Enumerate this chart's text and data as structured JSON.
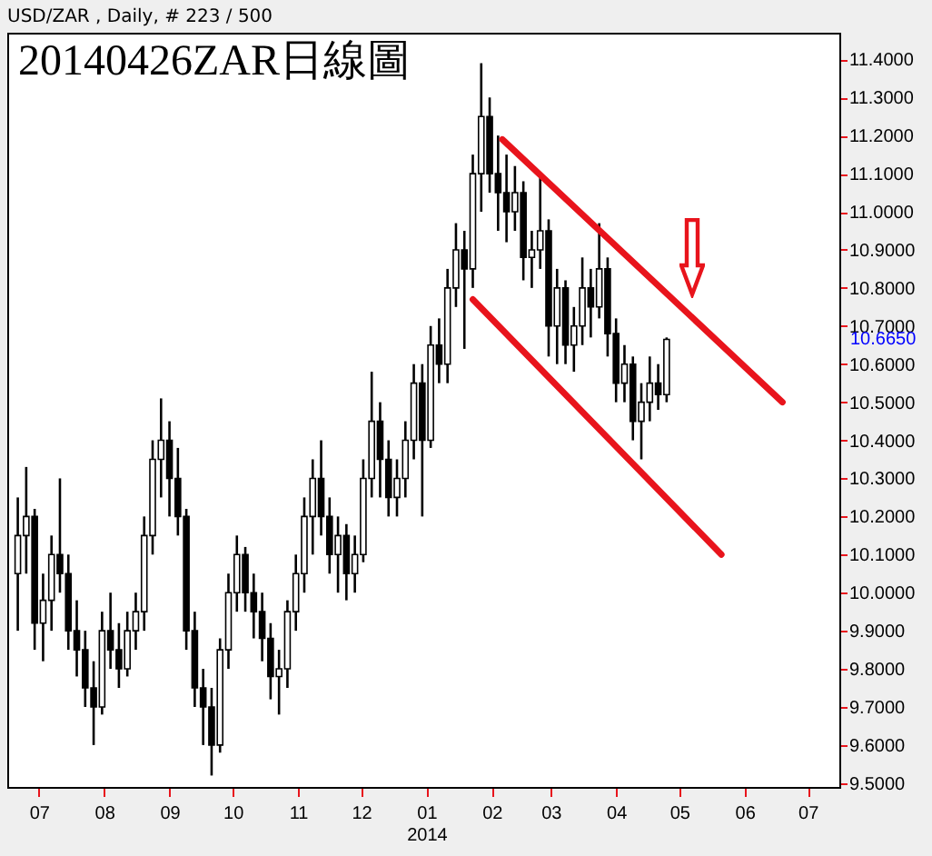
{
  "chart_data": {
    "type": "candlestick",
    "title": "20140426ZAR日線圖",
    "subtitle": "USD/ZAR , Daily, # 223 / 500",
    "x": [
      "2013-06-21",
      "2013-06-25",
      "2013-06-29",
      "2013-07-03",
      "2013-07-07",
      "2013-07-11",
      "2013-07-15",
      "2013-07-19",
      "2013-07-23",
      "2013-07-27",
      "2013-07-31",
      "2013-08-04",
      "2013-08-08",
      "2013-08-12",
      "2013-08-16",
      "2013-08-20",
      "2013-08-24",
      "2013-08-28",
      "2013-09-01",
      "2013-09-05",
      "2013-09-09",
      "2013-09-13",
      "2013-09-17",
      "2013-09-21",
      "2013-09-25",
      "2013-09-29",
      "2013-10-03",
      "2013-10-07",
      "2013-10-11",
      "2013-10-15",
      "2013-10-19",
      "2013-10-23",
      "2013-10-27",
      "2013-10-31",
      "2013-11-04",
      "2013-11-08",
      "2013-11-12",
      "2013-11-16",
      "2013-11-20",
      "2013-11-24",
      "2013-11-28",
      "2013-12-02",
      "2013-12-06",
      "2013-12-10",
      "2013-12-14",
      "2013-12-18",
      "2013-12-22",
      "2013-12-26",
      "2013-12-30",
      "2014-01-03",
      "2014-01-07",
      "2014-01-11",
      "2014-01-15",
      "2014-01-19",
      "2014-01-23",
      "2014-01-27",
      "2014-01-31",
      "2014-02-04",
      "2014-02-08",
      "2014-02-12",
      "2014-02-16",
      "2014-02-20",
      "2014-02-24",
      "2014-02-28",
      "2014-03-04",
      "2014-03-08",
      "2014-03-12",
      "2014-03-16",
      "2014-03-20",
      "2014-03-24",
      "2014-03-28",
      "2014-04-01",
      "2014-04-05",
      "2014-04-09",
      "2014-04-13",
      "2014-04-17",
      "2014-04-21",
      "2014-04-25"
    ],
    "ohlc": [
      [
        10.05,
        10.25,
        9.9,
        10.15
      ],
      [
        10.15,
        10.33,
        10.05,
        10.2
      ],
      [
        10.2,
        10.22,
        9.85,
        9.92
      ],
      [
        9.92,
        10.05,
        9.82,
        9.98
      ],
      [
        9.98,
        10.15,
        9.9,
        10.1
      ],
      [
        10.1,
        10.3,
        10.0,
        10.05
      ],
      [
        10.05,
        10.1,
        9.85,
        9.9
      ],
      [
        9.9,
        9.98,
        9.78,
        9.85
      ],
      [
        9.85,
        9.9,
        9.7,
        9.75
      ],
      [
        9.75,
        9.82,
        9.6,
        9.7
      ],
      [
        9.7,
        9.95,
        9.68,
        9.9
      ],
      [
        9.9,
        10.0,
        9.8,
        9.85
      ],
      [
        9.85,
        9.92,
        9.75,
        9.8
      ],
      [
        9.8,
        9.95,
        9.78,
        9.9
      ],
      [
        9.9,
        10.0,
        9.85,
        9.95
      ],
      [
        9.95,
        10.2,
        9.9,
        10.15
      ],
      [
        10.15,
        10.4,
        10.1,
        10.35
      ],
      [
        10.35,
        10.51,
        10.25,
        10.4
      ],
      [
        10.4,
        10.45,
        10.2,
        10.3
      ],
      [
        10.3,
        10.38,
        10.15,
        10.2
      ],
      [
        10.2,
        10.22,
        9.85,
        9.9
      ],
      [
        9.9,
        9.95,
        9.7,
        9.75
      ],
      [
        9.75,
        9.8,
        9.6,
        9.7
      ],
      [
        9.7,
        9.75,
        9.52,
        9.6
      ],
      [
        9.6,
        9.88,
        9.58,
        9.85
      ],
      [
        9.85,
        10.05,
        9.8,
        10.0
      ],
      [
        10.0,
        10.15,
        9.95,
        10.1
      ],
      [
        10.1,
        10.12,
        9.95,
        10.0
      ],
      [
        10.0,
        10.05,
        9.88,
        9.95
      ],
      [
        9.95,
        10.0,
        9.82,
        9.88
      ],
      [
        9.88,
        9.92,
        9.72,
        9.78
      ],
      [
        9.78,
        9.85,
        9.68,
        9.8
      ],
      [
        9.8,
        9.98,
        9.75,
        9.95
      ],
      [
        9.95,
        10.1,
        9.9,
        10.05
      ],
      [
        10.05,
        10.25,
        10.0,
        10.2
      ],
      [
        10.2,
        10.35,
        10.1,
        10.3
      ],
      [
        10.3,
        10.4,
        10.15,
        10.2
      ],
      [
        10.2,
        10.25,
        10.05,
        10.1
      ],
      [
        10.1,
        10.2,
        10.0,
        10.15
      ],
      [
        10.15,
        10.18,
        9.98,
        10.05
      ],
      [
        10.05,
        10.15,
        10.0,
        10.1
      ],
      [
        10.1,
        10.35,
        10.08,
        10.3
      ],
      [
        10.3,
        10.58,
        10.25,
        10.45
      ],
      [
        10.45,
        10.5,
        10.25,
        10.35
      ],
      [
        10.35,
        10.4,
        10.2,
        10.25
      ],
      [
        10.25,
        10.35,
        10.2,
        10.3
      ],
      [
        10.3,
        10.45,
        10.25,
        10.4
      ],
      [
        10.4,
        10.6,
        10.35,
        10.55
      ],
      [
        10.55,
        10.6,
        10.2,
        10.4
      ],
      [
        10.4,
        10.7,
        10.38,
        10.65
      ],
      [
        10.65,
        10.72,
        10.55,
        10.6
      ],
      [
        10.6,
        10.85,
        10.55,
        10.8
      ],
      [
        10.8,
        10.97,
        10.75,
        10.9
      ],
      [
        10.9,
        10.95,
        10.64,
        10.85
      ],
      [
        10.85,
        11.15,
        10.8,
        11.1
      ],
      [
        11.1,
        11.39,
        11.0,
        11.25
      ],
      [
        11.25,
        11.3,
        11.05,
        11.1
      ],
      [
        11.1,
        11.2,
        10.95,
        11.05
      ],
      [
        11.05,
        11.15,
        10.92,
        11.0
      ],
      [
        11.0,
        11.12,
        10.95,
        11.05
      ],
      [
        11.05,
        11.08,
        10.82,
        10.88
      ],
      [
        10.88,
        10.95,
        10.8,
        10.9
      ],
      [
        10.9,
        11.1,
        10.85,
        10.95
      ],
      [
        10.95,
        10.98,
        10.62,
        10.7
      ],
      [
        10.7,
        10.85,
        10.6,
        10.8
      ],
      [
        10.8,
        10.82,
        10.6,
        10.65
      ],
      [
        10.65,
        10.75,
        10.58,
        10.7
      ],
      [
        10.7,
        10.88,
        10.65,
        10.8
      ],
      [
        10.8,
        10.85,
        10.67,
        10.75
      ],
      [
        10.75,
        10.97,
        10.72,
        10.85
      ],
      [
        10.85,
        10.88,
        10.62,
        10.68
      ],
      [
        10.68,
        10.72,
        10.5,
        10.55
      ],
      [
        10.55,
        10.65,
        10.5,
        10.6
      ],
      [
        10.6,
        10.62,
        10.4,
        10.45
      ],
      [
        10.45,
        10.55,
        10.35,
        10.5
      ],
      [
        10.5,
        10.62,
        10.45,
        10.55
      ],
      [
        10.55,
        10.6,
        10.48,
        10.52
      ],
      [
        10.52,
        10.67,
        10.5,
        10.665
      ]
    ],
    "series": [
      {
        "type": "line",
        "color": "#e8141c",
        "x": [
          "2014-02-06",
          "2014-06-19"
        ],
        "values": [
          11.19,
          10.5
        ]
      },
      {
        "type": "line",
        "color": "#e8141c",
        "x": [
          "2014-01-23",
          "2014-05-21"
        ],
        "values": [
          10.77,
          10.1
        ]
      }
    ],
    "xlim": [
      "2013-06-16",
      "2014-07-16"
    ],
    "xticks": [
      {
        "value": "2013-07-01",
        "label": "07"
      },
      {
        "value": "2013-08-01",
        "label": "08"
      },
      {
        "value": "2013-09-01",
        "label": "09"
      },
      {
        "value": "2013-10-01",
        "label": "10"
      },
      {
        "value": "2013-11-01",
        "label": "11"
      },
      {
        "value": "2013-12-01",
        "label": "12"
      },
      {
        "value": "2014-01-01",
        "label": "01\n2014"
      },
      {
        "value": "2014-02-01",
        "label": "02"
      },
      {
        "value": "2014-03-01",
        "label": "03"
      },
      {
        "value": "2014-04-01",
        "label": "04"
      },
      {
        "value": "2014-05-01",
        "label": "05"
      },
      {
        "value": "2014-06-01",
        "label": "06"
      },
      {
        "value": "2014-07-01",
        "label": "07"
      }
    ],
    "ylim": [
      9.49,
      11.47
    ],
    "yticks": [
      {
        "value": 9.5,
        "label": "9.5000"
      },
      {
        "value": 9.6,
        "label": "9.6000"
      },
      {
        "value": 9.7,
        "label": "9.7000"
      },
      {
        "value": 9.8,
        "label": "9.8000"
      },
      {
        "value": 9.9,
        "label": "9.9000"
      },
      {
        "value": 10.0,
        "label": "10.0000"
      },
      {
        "value": 10.1,
        "label": "10.1000"
      },
      {
        "value": 10.2,
        "label": "10.2000"
      },
      {
        "value": 10.3,
        "label": "10.3000"
      },
      {
        "value": 10.4,
        "label": "10.4000"
      },
      {
        "value": 10.5,
        "label": "10.5000"
      },
      {
        "value": 10.6,
        "label": "10.6000"
      },
      {
        "value": 10.7,
        "label": "10.7000"
      },
      {
        "value": 10.8,
        "label": "10.8000"
      },
      {
        "value": 10.9,
        "label": "10.9000"
      },
      {
        "value": 11.0,
        "label": "11.0000"
      },
      {
        "value": 11.1,
        "label": "11.1000"
      },
      {
        "value": 11.2,
        "label": "11.2000"
      },
      {
        "value": 11.3,
        "label": "11.3000"
      },
      {
        "value": 11.4,
        "label": "11.4000"
      }
    ],
    "annotations": [
      "10.6650"
    ]
  }
}
